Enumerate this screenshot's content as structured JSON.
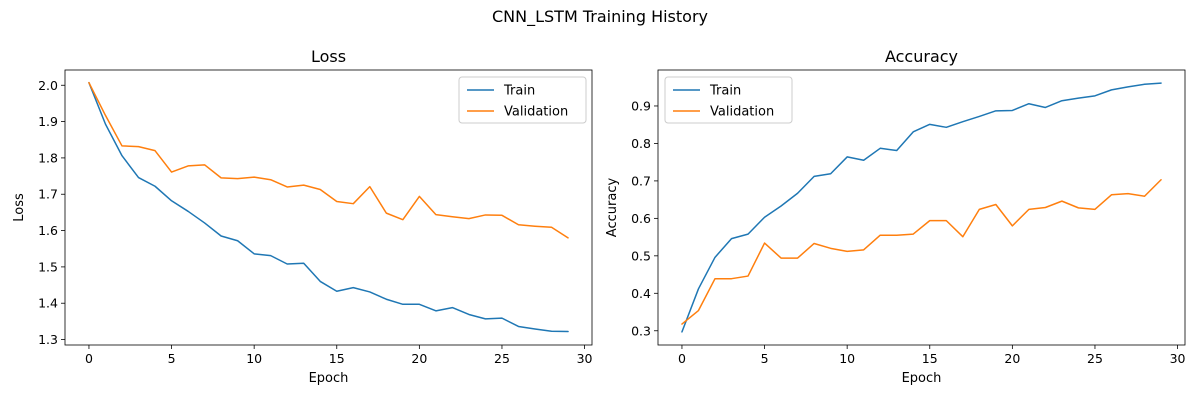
{
  "figure": {
    "suptitle": "CNN_LSTM Training History"
  },
  "chart_data": [
    {
      "type": "line",
      "title": "Loss",
      "xlabel": "Epoch",
      "ylabel": "Loss",
      "xlim": [
        -1.45,
        30.45
      ],
      "ylim": [
        1.285,
        2.042
      ],
      "xticks": [
        0,
        5,
        10,
        15,
        20,
        25,
        30
      ],
      "yticks": [
        1.3,
        1.4,
        1.5,
        1.6,
        1.7,
        1.8,
        1.9,
        2.0
      ],
      "ytick_labels": [
        "1.3",
        "1.4",
        "1.5",
        "1.6",
        "1.7",
        "1.8",
        "1.9",
        "2.0"
      ],
      "legend_position": "top-right",
      "grid": false,
      "x": [
        0,
        1,
        2,
        3,
        4,
        5,
        6,
        7,
        8,
        9,
        10,
        11,
        12,
        13,
        14,
        15,
        16,
        17,
        18,
        19,
        20,
        21,
        22,
        23,
        24,
        25,
        26,
        27,
        28,
        29
      ],
      "series": [
        {
          "name": "Train",
          "color": "#1f77b4",
          "values": [
            2.007,
            1.893,
            1.806,
            1.746,
            1.722,
            1.682,
            1.653,
            1.621,
            1.585,
            1.572,
            1.536,
            1.531,
            1.508,
            1.51,
            1.46,
            1.433,
            1.443,
            1.431,
            1.411,
            1.397,
            1.397,
            1.379,
            1.388,
            1.369,
            1.357,
            1.359,
            1.336,
            1.329,
            1.323,
            1.322
          ]
        },
        {
          "name": "Validation",
          "color": "#ff7f0e",
          "values": [
            2.007,
            1.917,
            1.833,
            1.831,
            1.82,
            1.761,
            1.778,
            1.781,
            1.745,
            1.743,
            1.747,
            1.74,
            1.72,
            1.725,
            1.713,
            1.68,
            1.674,
            1.721,
            1.648,
            1.63,
            1.694,
            1.644,
            1.638,
            1.633,
            1.643,
            1.642,
            1.616,
            1.612,
            1.609,
            1.58
          ]
        }
      ]
    },
    {
      "type": "line",
      "title": "Accuracy",
      "xlabel": "Epoch",
      "ylabel": "Accuracy",
      "xlim": [
        -1.45,
        30.45
      ],
      "ylim": [
        0.262,
        0.996
      ],
      "xticks": [
        0,
        5,
        10,
        15,
        20,
        25,
        30
      ],
      "yticks": [
        0.3,
        0.4,
        0.5,
        0.6,
        0.7,
        0.8,
        0.9
      ],
      "ytick_labels": [
        "0.3",
        "0.4",
        "0.5",
        "0.6",
        "0.7",
        "0.8",
        "0.9"
      ],
      "legend_position": "top-left",
      "grid": false,
      "x": [
        0,
        1,
        2,
        3,
        4,
        5,
        6,
        7,
        8,
        9,
        10,
        11,
        12,
        13,
        14,
        15,
        16,
        17,
        18,
        19,
        20,
        21,
        22,
        23,
        24,
        25,
        26,
        27,
        28,
        29
      ],
      "series": [
        {
          "name": "Train",
          "color": "#1f77b4",
          "values": [
            0.297,
            0.412,
            0.496,
            0.546,
            0.558,
            0.603,
            0.633,
            0.667,
            0.712,
            0.719,
            0.764,
            0.755,
            0.787,
            0.781,
            0.831,
            0.851,
            0.843,
            0.858,
            0.872,
            0.887,
            0.888,
            0.906,
            0.896,
            0.914,
            0.921,
            0.927,
            0.943,
            0.951,
            0.958,
            0.961
          ]
        },
        {
          "name": "Validation",
          "color": "#ff7f0e",
          "values": [
            0.318,
            0.354,
            0.439,
            0.439,
            0.446,
            0.534,
            0.494,
            0.494,
            0.533,
            0.52,
            0.512,
            0.516,
            0.555,
            0.555,
            0.558,
            0.594,
            0.594,
            0.551,
            0.624,
            0.637,
            0.58,
            0.624,
            0.629,
            0.646,
            0.628,
            0.624,
            0.663,
            0.666,
            0.659,
            0.703
          ]
        }
      ]
    }
  ]
}
